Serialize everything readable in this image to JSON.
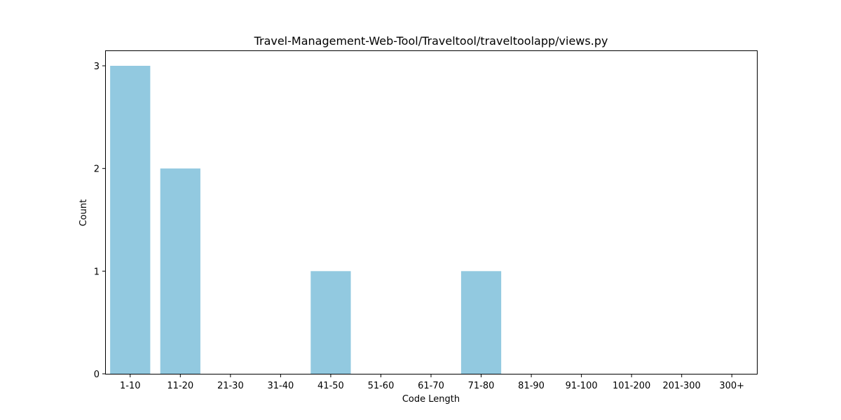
{
  "chart_data": {
    "type": "bar",
    "title": "Travel-Management-Web-Tool/Traveltool/traveltoolapp/views.py",
    "xlabel": "Code Length",
    "ylabel": "Count",
    "categories": [
      "1-10",
      "11-20",
      "21-30",
      "31-40",
      "41-50",
      "51-60",
      "61-70",
      "71-80",
      "81-90",
      "91-100",
      "101-200",
      "201-300",
      "300+"
    ],
    "values": [
      3,
      2,
      0,
      0,
      1,
      0,
      0,
      1,
      0,
      0,
      0,
      0,
      0
    ],
    "ylim": [
      0,
      3.15
    ],
    "yticks": [
      0,
      1,
      2,
      3
    ],
    "bar_color": "#92C9E0",
    "grid": false,
    "legend": "none"
  }
}
